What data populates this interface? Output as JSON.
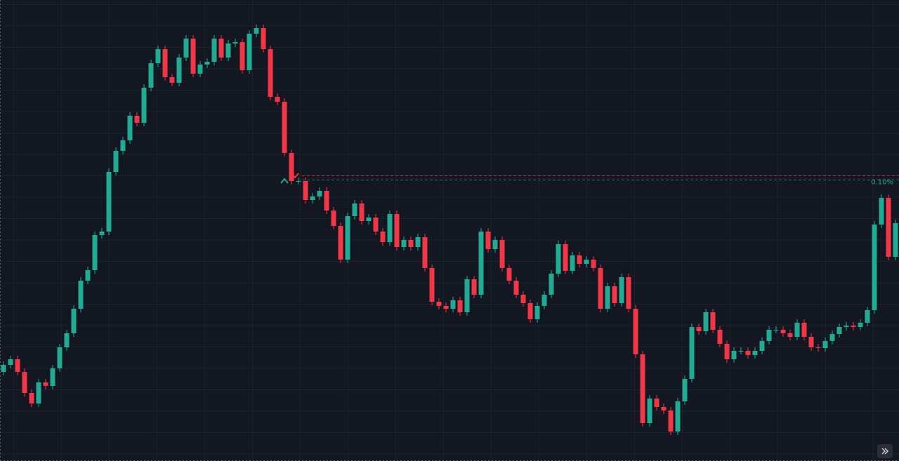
{
  "chart_data": {
    "type": "candlestick",
    "ylim": [
      0,
      657
    ],
    "up_color": "#22ab94",
    "down_color": "#f23645",
    "open": [
      127,
      137,
      145,
      127,
      97,
      82,
      112,
      107,
      132,
      162,
      182,
      217,
      257,
      272,
      322,
      327,
      412,
      442,
      457,
      492,
      482,
      532,
      567,
      587,
      547,
      539,
      575,
      602,
      552,
      565,
      569,
      602,
      575,
      595,
      597,
      557,
      609,
      617,
      587,
      519,
      512,
      439,
      399,
      399,
      372,
      377,
      385,
      357,
      335,
      287,
      349,
      367,
      342,
      347,
      327,
      312,
      352,
      305,
      315,
      305,
      319,
      275,
      227,
      221,
      217,
      229,
      212,
      259,
      237,
      327,
      302,
      315,
      275,
      257,
      237,
      225,
      202,
      221,
      237,
      267,
      309,
      271,
      293,
      281,
      287,
      275,
      217,
      249,
      225,
      262,
      217,
      152,
      54,
      89,
      77,
      72,
      42,
      85,
      117,
      191,
      185,
      212,
      187,
      167,
      145,
      157,
      157,
      151,
      157,
      171,
      187,
      187,
      182,
      177,
      197,
      177,
      162,
      161,
      171,
      181,
      191,
      193,
      191,
      197,
      215,
      337,
      375,
      291
    ],
    "high": [
      142,
      150,
      150,
      132,
      102,
      117,
      117,
      137,
      167,
      187,
      222,
      262,
      277,
      327,
      332,
      417,
      447,
      462,
      497,
      497,
      537,
      572,
      592,
      592,
      552,
      580,
      607,
      607,
      570,
      574,
      607,
      607,
      600,
      602,
      602,
      614,
      622,
      622,
      592,
      524,
      517,
      444,
      404,
      404,
      382,
      390,
      390,
      362,
      340,
      354,
      372,
      372,
      352,
      352,
      332,
      357,
      357,
      320,
      320,
      324,
      324,
      280,
      232,
      226,
      234,
      234,
      264,
      264,
      332,
      332,
      320,
      320,
      280,
      262,
      242,
      230,
      226,
      242,
      272,
      314,
      314,
      298,
      298,
      292,
      292,
      280,
      254,
      254,
      267,
      267,
      222,
      157,
      94,
      94,
      82,
      77,
      90,
      122,
      196,
      196,
      217,
      217,
      192,
      172,
      162,
      162,
      162,
      162,
      176,
      192,
      192,
      192,
      187,
      202,
      202,
      182,
      167,
      176,
      186,
      196,
      198,
      198,
      202,
      220,
      342,
      380,
      380,
      344
    ],
    "low": [
      122,
      132,
      122,
      92,
      77,
      77,
      102,
      102,
      127,
      157,
      177,
      212,
      252,
      267,
      317,
      322,
      407,
      437,
      452,
      477,
      477,
      527,
      562,
      542,
      534,
      534,
      570,
      547,
      547,
      560,
      564,
      570,
      570,
      590,
      552,
      552,
      604,
      582,
      514,
      507,
      434,
      394,
      394,
      367,
      367,
      372,
      352,
      330,
      282,
      282,
      344,
      337,
      337,
      322,
      307,
      307,
      300,
      300,
      300,
      300,
      270,
      222,
      216,
      212,
      212,
      207,
      207,
      232,
      232,
      297,
      297,
      270,
      252,
      232,
      220,
      197,
      197,
      216,
      232,
      262,
      266,
      266,
      276,
      276,
      270,
      212,
      212,
      220,
      220,
      212,
      147,
      49,
      49,
      72,
      67,
      37,
      37,
      80,
      112,
      180,
      180,
      182,
      162,
      140,
      140,
      152,
      146,
      146,
      152,
      166,
      182,
      177,
      172,
      172,
      172,
      157,
      156,
      156,
      166,
      176,
      186,
      186,
      186,
      192,
      210,
      332,
      286,
      286
    ],
    "close": [
      137,
      145,
      127,
      97,
      82,
      112,
      107,
      132,
      162,
      182,
      217,
      257,
      272,
      322,
      327,
      412,
      442,
      457,
      492,
      482,
      532,
      567,
      587,
      547,
      539,
      575,
      602,
      552,
      565,
      569,
      602,
      575,
      595,
      597,
      557,
      609,
      617,
      587,
      519,
      512,
      439,
      399,
      399,
      372,
      377,
      385,
      357,
      335,
      287,
      349,
      367,
      342,
      347,
      327,
      312,
      352,
      305,
      315,
      305,
      319,
      275,
      227,
      221,
      217,
      229,
      212,
      259,
      237,
      327,
      302,
      315,
      275,
      257,
      237,
      225,
      202,
      221,
      237,
      267,
      309,
      271,
      293,
      281,
      287,
      275,
      217,
      249,
      225,
      262,
      217,
      152,
      54,
      89,
      77,
      72,
      42,
      85,
      117,
      191,
      185,
      212,
      187,
      167,
      145,
      157,
      157,
      151,
      157,
      171,
      187,
      187,
      182,
      177,
      197,
      177,
      162,
      161,
      171,
      181,
      191,
      193,
      191,
      197,
      215,
      337,
      375,
      291,
      339
    ],
    "price_lines": [
      {
        "value": 407,
        "color": "#f23645"
      },
      {
        "value": 401,
        "color": "#22ab94",
        "label": "0.10%"
      }
    ],
    "grid": true
  }
}
